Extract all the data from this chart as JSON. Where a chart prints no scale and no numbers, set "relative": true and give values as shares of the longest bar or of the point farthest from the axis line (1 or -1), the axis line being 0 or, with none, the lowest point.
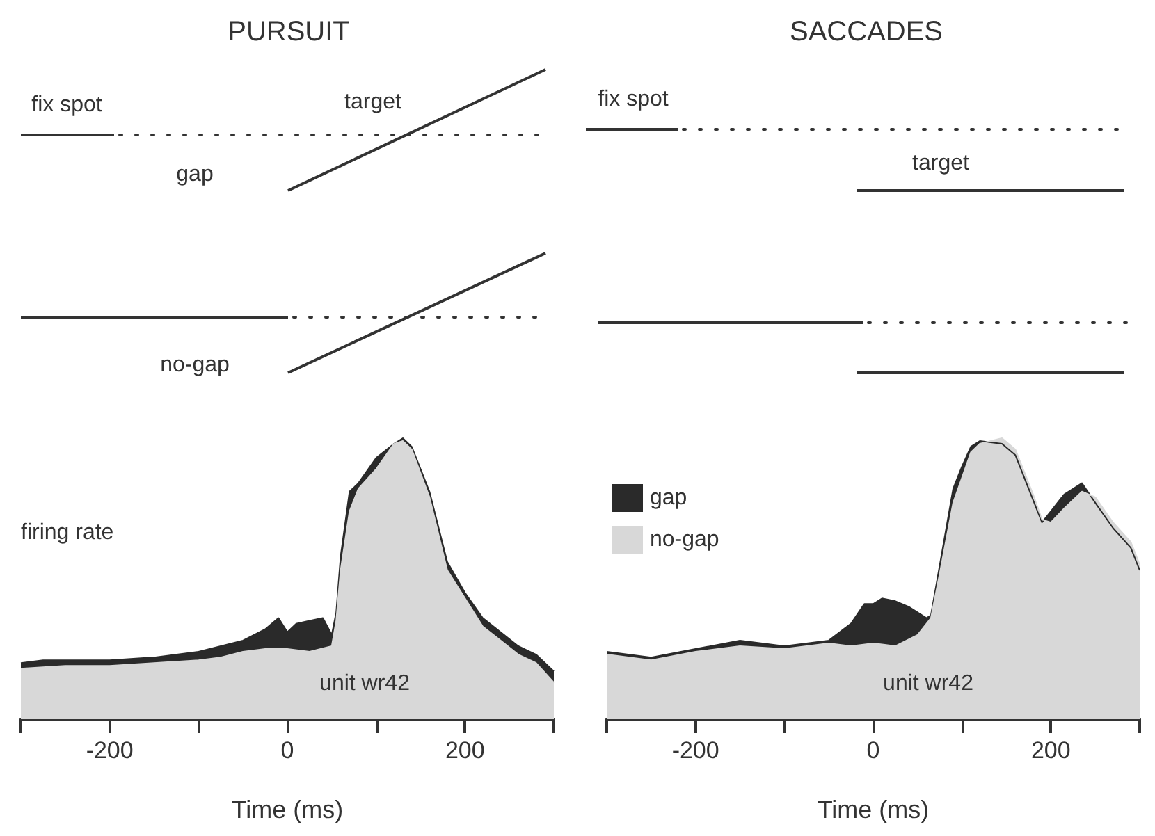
{
  "chart_data": [
    {
      "type": "area",
      "title": "PURSUIT",
      "xlabel": "Time (ms)",
      "ylabel": "firing rate",
      "relative": true,
      "legend": false,
      "grid": false,
      "marker": "none",
      "annotations": [
        "fix spot",
        "target",
        "gap",
        "no-gap",
        "unit wr42"
      ],
      "xlim": [
        -300,
        300
      ],
      "xticks": [
        {
          "value": -300,
          "label": null
        },
        {
          "value": -200,
          "label": "-200"
        },
        {
          "value": -100,
          "label": null
        },
        {
          "value": 0,
          "label": "0"
        },
        {
          "value": 100,
          "label": null
        },
        {
          "value": 200,
          "label": "200"
        },
        {
          "value": 300,
          "label": null
        }
      ],
      "series": [
        {
          "color": "#2a2a2a",
          "x": [
            -300,
            -275,
            -250,
            -200,
            -150,
            -100,
            -75,
            -50,
            -25,
            -10,
            0,
            10,
            25,
            40,
            50,
            55,
            60,
            70,
            80,
            100,
            120,
            130,
            140,
            160,
            180,
            200,
            220,
            240,
            260,
            280,
            300
          ],
          "values": [
            0.2,
            0.21,
            0.21,
            0.21,
            0.22,
            0.24,
            0.26,
            0.28,
            0.32,
            0.36,
            0.31,
            0.34,
            0.35,
            0.36,
            0.3,
            0.38,
            0.58,
            0.81,
            0.84,
            0.93,
            0.98,
            1,
            0.97,
            0.81,
            0.56,
            0.45,
            0.36,
            0.31,
            0.26,
            0.23,
            0.17
          ]
        },
        {
          "color": "#d8d8d8",
          "x": [
            -300,
            -250,
            -200,
            -150,
            -100,
            -75,
            -50,
            -25,
            0,
            25,
            50,
            55,
            60,
            70,
            80,
            100,
            120,
            130,
            140,
            160,
            180,
            200,
            220,
            240,
            260,
            280,
            300
          ],
          "values": [
            0.18,
            0.19,
            0.19,
            0.2,
            0.21,
            0.22,
            0.24,
            0.25,
            0.25,
            0.24,
            0.26,
            0.35,
            0.53,
            0.74,
            0.82,
            0.89,
            0.98,
            0.99,
            0.96,
            0.79,
            0.53,
            0.43,
            0.33,
            0.28,
            0.23,
            0.2,
            0.13
          ]
        }
      ]
    },
    {
      "type": "area",
      "title": "SACCADES",
      "xlabel": "Time (ms)",
      "relative": true,
      "legend": "top left",
      "grid": false,
      "marker": "none",
      "annotations": [
        "fix spot",
        "target",
        "unit wr42"
      ],
      "xlim": [
        -300,
        300
      ],
      "xticks": [
        {
          "value": -300,
          "label": null
        },
        {
          "value": -200,
          "label": "-200"
        },
        {
          "value": -100,
          "label": null
        },
        {
          "value": 0,
          "label": "0"
        },
        {
          "value": 100,
          "label": null
        },
        {
          "value": 200,
          "label": "200"
        },
        {
          "value": 300,
          "label": null
        }
      ],
      "series": [
        {
          "name": "gap",
          "color": "#2a2a2a",
          "x": [
            -300,
            -250,
            -200,
            -150,
            -100,
            -50,
            -25,
            -10,
            0,
            10,
            25,
            40,
            60,
            65,
            75,
            90,
            100,
            110,
            120,
            145,
            160,
            180,
            190,
            200,
            215,
            235,
            250,
            270,
            290,
            300
          ],
          "values": [
            0.24,
            0.22,
            0.25,
            0.28,
            0.26,
            0.28,
            0.34,
            0.41,
            0.41,
            0.43,
            0.42,
            0.4,
            0.36,
            0.37,
            0.55,
            0.82,
            0.9,
            0.97,
            0.99,
            0.98,
            0.94,
            0.78,
            0.7,
            0.74,
            0.8,
            0.84,
            0.77,
            0.68,
            0.61,
            0.53
          ]
        },
        {
          "name": "no-gap",
          "color": "#d8d8d8",
          "x": [
            -300,
            -250,
            -200,
            -150,
            -100,
            -50,
            -25,
            0,
            25,
            50,
            65,
            75,
            90,
            100,
            110,
            120,
            145,
            160,
            180,
            190,
            200,
            215,
            235,
            250,
            270,
            290,
            300
          ],
          "values": [
            0.23,
            0.21,
            0.24,
            0.26,
            0.25,
            0.27,
            0.26,
            0.27,
            0.26,
            0.3,
            0.36,
            0.52,
            0.77,
            0.86,
            0.95,
            0.98,
            1,
            0.96,
            0.8,
            0.71,
            0.7,
            0.75,
            0.81,
            0.79,
            0.7,
            0.63,
            0.55
          ]
        }
      ]
    }
  ]
}
